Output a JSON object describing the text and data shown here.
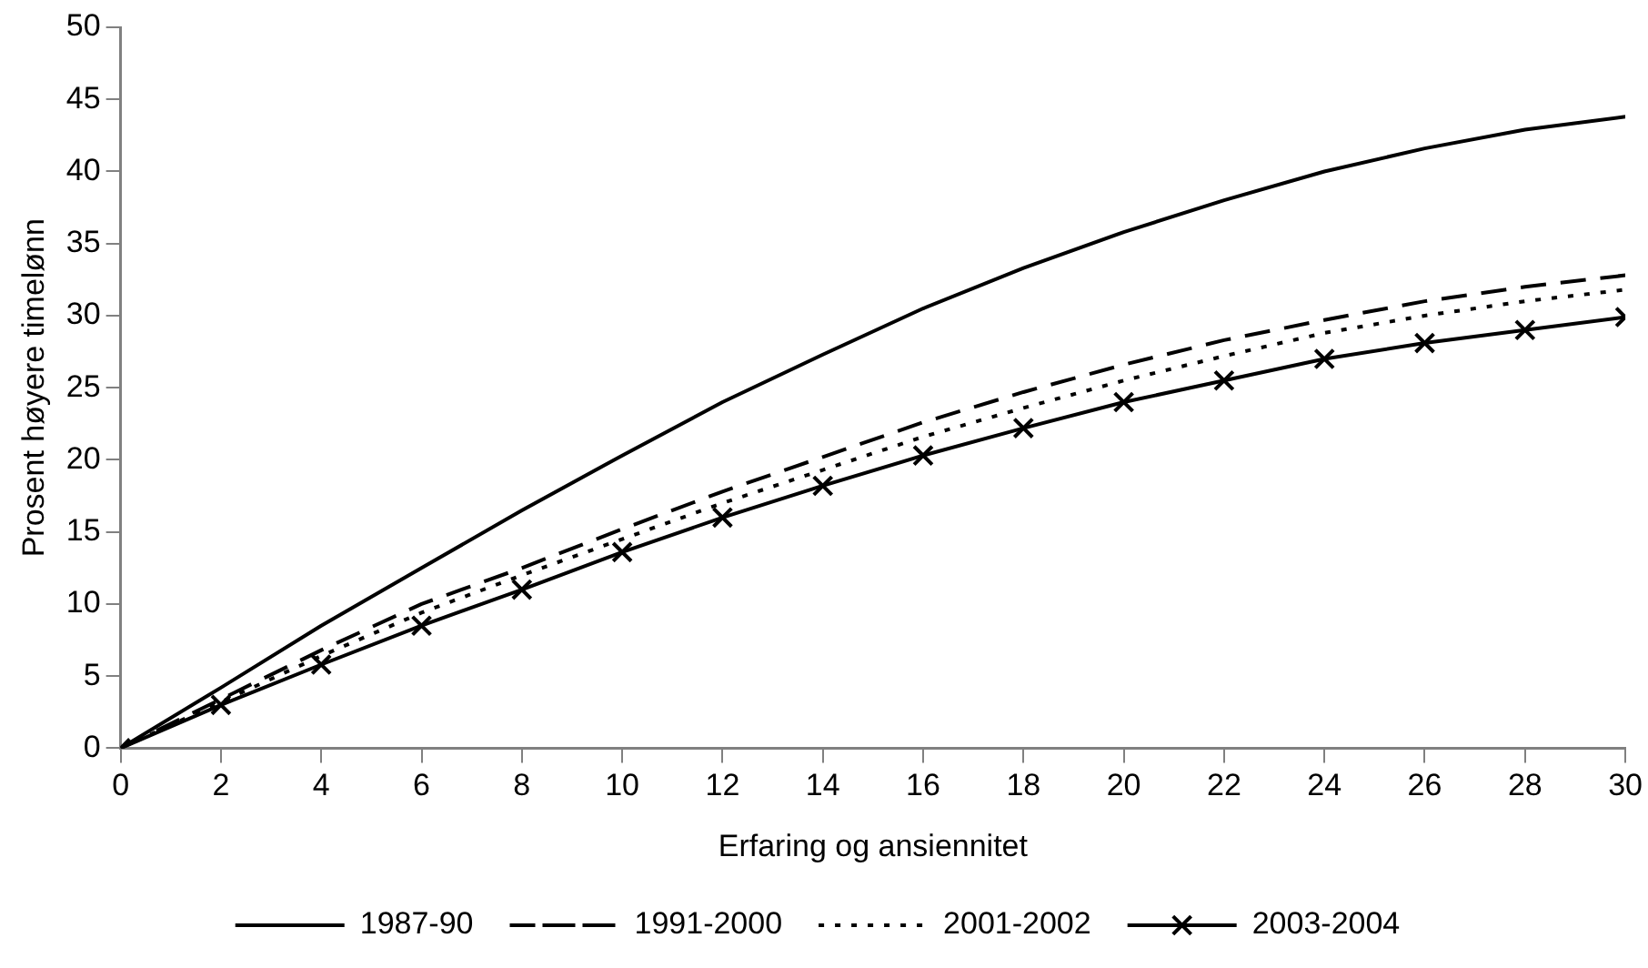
{
  "chart_data": {
    "type": "line",
    "xlabel": "Erfaring og ansiennitet",
    "ylabel": "Prosent høyere timelønn",
    "x": [
      0,
      2,
      4,
      6,
      8,
      10,
      12,
      14,
      16,
      18,
      20,
      22,
      24,
      26,
      28,
      30
    ],
    "xlim": [
      0,
      30
    ],
    "xticks": [
      0,
      2,
      4,
      6,
      8,
      10,
      12,
      14,
      16,
      18,
      20,
      22,
      24,
      26,
      28,
      30
    ],
    "ylim": [
      0,
      50
    ],
    "yticks": [
      0,
      5,
      10,
      15,
      20,
      25,
      30,
      35,
      40,
      45,
      50
    ],
    "grid": false,
    "legend": "bottom",
    "marker": "none",
    "series": [
      {
        "name": "1987-90",
        "color": "#000000",
        "line_style": "solid",
        "values": [
          0,
          4.2,
          8.5,
          12.5,
          16.5,
          20.3,
          24,
          27.3,
          30.5,
          33.3,
          35.8,
          38,
          40,
          41.6,
          42.9,
          43.8
        ]
      },
      {
        "name": "1991-2000",
        "color": "#000000",
        "line_style": "dashed",
        "values": [
          0,
          3.4,
          6.8,
          10,
          12.5,
          15.2,
          17.8,
          20.2,
          22.6,
          24.7,
          26.6,
          28.3,
          29.7,
          31,
          32,
          32.8
        ]
      },
      {
        "name": "2001-2002",
        "color": "#000000",
        "line_style": "dotted",
        "values": [
          0,
          3.2,
          6.4,
          9.4,
          12,
          14.5,
          17,
          19.3,
          21.6,
          23.6,
          25.5,
          27.2,
          28.8,
          30,
          31,
          31.8
        ]
      },
      {
        "name": "2003-2004",
        "color": "#000000",
        "line_style": "solid",
        "marker": "cross",
        "values": [
          0,
          3,
          5.8,
          8.5,
          11,
          13.6,
          16,
          18.2,
          20.3,
          22.2,
          24,
          25.5,
          27,
          28.1,
          29,
          29.9
        ]
      }
    ]
  }
}
